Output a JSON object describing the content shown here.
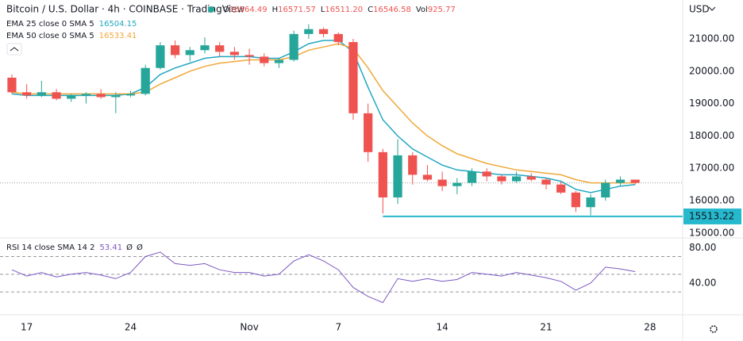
{
  "chart_data": {
    "type": "candlestick",
    "title": "Bitcoin / U.S. Dollar · 4h · COINBASE · TradingView",
    "header_values": [
      {
        "label": "O",
        "value": "16564.49"
      },
      {
        "label": "H",
        "value": "16571.57"
      },
      {
        "label": "L",
        "value": "16511.20"
      },
      {
        "label": "C",
        "value": "16546.58"
      },
      {
        "label": "Vol",
        "value": "925.77"
      }
    ],
    "currency": "USD",
    "x": [
      16,
      17,
      18,
      19,
      20,
      21,
      22,
      23,
      24,
      25,
      26,
      27,
      28,
      29,
      30,
      31,
      32,
      33,
      34,
      35,
      36,
      37,
      38,
      39,
      40,
      41,
      42,
      43,
      44,
      45,
      46,
      47,
      48,
      49,
      50,
      51,
      52,
      53,
      54,
      55,
      56,
      57,
      58
    ],
    "open": [
      19800,
      19350,
      19250,
      19350,
      19150,
      19250,
      19300,
      19200,
      19250,
      19300,
      20100,
      20800,
      20500,
      20650,
      20800,
      20600,
      20500,
      20450,
      20250,
      20350,
      21150,
      21300,
      21150,
      20900,
      18700,
      17500,
      16100,
      17400,
      16800,
      16650,
      16450,
      16550,
      16900,
      16750,
      16600,
      16750,
      16650,
      16500,
      16250,
      15800,
      16100,
      16550,
      16650
    ],
    "high": [
      19900,
      19600,
      19700,
      19450,
      19300,
      19350,
      19450,
      19350,
      19400,
      20200,
      20900,
      20950,
      20750,
      21050,
      20900,
      20750,
      20700,
      20550,
      20400,
      21250,
      21450,
      21350,
      21200,
      21000,
      19000,
      17600,
      17900,
      17500,
      17100,
      16900,
      16700,
      17000,
      17000,
      16800,
      16900,
      16850,
      16700,
      16600,
      16300,
      16200,
      16650,
      16750,
      16650
    ],
    "low": [
      19300,
      19150,
      19200,
      19100,
      19050,
      19000,
      19150,
      18700,
      19200,
      19250,
      20050,
      20400,
      20300,
      20550,
      20450,
      20350,
      20200,
      20150,
      20100,
      20300,
      21000,
      21050,
      20800,
      18500,
      17200,
      15600,
      15900,
      16500,
      16600,
      16300,
      16200,
      16450,
      16600,
      16500,
      16550,
      16600,
      16350,
      16200,
      15650,
      15550,
      16000,
      16450,
      16500
    ],
    "close": [
      19350,
      19250,
      19350,
      19150,
      19250,
      19300,
      19200,
      19250,
      19300,
      20100,
      20800,
      20500,
      20650,
      20800,
      20600,
      20500,
      20450,
      20250,
      20350,
      21150,
      21300,
      21150,
      20900,
      18700,
      17500,
      16100,
      17400,
      16800,
      16650,
      16450,
      16550,
      16900,
      16750,
      16600,
      16750,
      16650,
      16500,
      16250,
      15800,
      16100,
      16550,
      16650,
      16550
    ],
    "up_color": "#26a69a",
    "down_color": "#ef5350",
    "lines": [
      {
        "name": "EMA 25 close 0 SMA 5",
        "last_value": "16504.15",
        "color": "#22a7c2",
        "values": [
          19300,
          19250,
          19250,
          19250,
          19250,
          19250,
          19250,
          19250,
          19300,
          19500,
          19900,
          20100,
          20250,
          20400,
          20450,
          20450,
          20450,
          20400,
          20400,
          20600,
          20850,
          20950,
          20950,
          20600,
          19500,
          18500,
          18000,
          17600,
          17350,
          17100,
          16950,
          16900,
          16850,
          16800,
          16800,
          16750,
          16700,
          16600,
          16350,
          16250,
          16350,
          16450,
          16500
        ]
      },
      {
        "name": "EMA 50 close 0 SMA 5",
        "last_value": "16533.41",
        "color": "#f0a83a",
        "values": [
          19350,
          19300,
          19300,
          19300,
          19300,
          19300,
          19300,
          19300,
          19300,
          19350,
          19600,
          19800,
          20000,
          20150,
          20250,
          20300,
          20350,
          20350,
          20350,
          20450,
          20650,
          20750,
          20850,
          20700,
          20100,
          19400,
          18900,
          18400,
          18000,
          17700,
          17450,
          17300,
          17150,
          17050,
          16950,
          16900,
          16850,
          16800,
          16650,
          16550,
          16550,
          16550,
          16550
        ]
      }
    ],
    "support": {
      "value": 15513.22,
      "label": "15513.22",
      "x_start": 41,
      "color": "#26b8cc"
    },
    "xlim": [
      15.2,
      61.2
    ],
    "xticks": [
      {
        "value": 17,
        "label": "17"
      },
      {
        "value": 24,
        "label": "24"
      },
      {
        "value": 32,
        "label": "Nov"
      },
      {
        "value": 38,
        "label": "7"
      },
      {
        "value": 45,
        "label": "14"
      },
      {
        "value": 52,
        "label": "21"
      },
      {
        "value": 59,
        "label": "28"
      }
    ],
    "ylim": [
      14850,
      22200
    ],
    "yticks": [
      {
        "value": 21000,
        "label": "21000.00"
      },
      {
        "value": 20000,
        "label": "20000.00"
      },
      {
        "value": 19000,
        "label": "19000.00"
      },
      {
        "value": 18000,
        "label": "18000.00"
      },
      {
        "value": 17000,
        "label": "17000.00"
      },
      {
        "value": 16000,
        "label": "16000.00"
      },
      {
        "value": 15000,
        "label": "15000.00"
      }
    ],
    "rsi": {
      "name": "RSI 14 close SMA 14 2",
      "last_value": "53.41",
      "extras": [
        "Ø",
        "Ø"
      ],
      "color": "#7e57c2",
      "values": [
        55,
        48,
        52,
        47,
        50,
        52,
        49,
        45,
        52,
        70,
        75,
        62,
        60,
        62,
        55,
        52,
        52,
        48,
        50,
        65,
        72,
        65,
        55,
        35,
        25,
        18,
        45,
        42,
        45,
        42,
        44,
        52,
        50,
        48,
        52,
        49,
        46,
        42,
        32,
        40,
        58,
        56,
        53
      ],
      "ylim": [
        6,
        91
      ],
      "yticks": [
        {
          "value": 80,
          "label": "80.00"
        },
        {
          "value": 40,
          "label": "40.00"
        }
      ],
      "bands": [
        70,
        50,
        30
      ]
    }
  }
}
